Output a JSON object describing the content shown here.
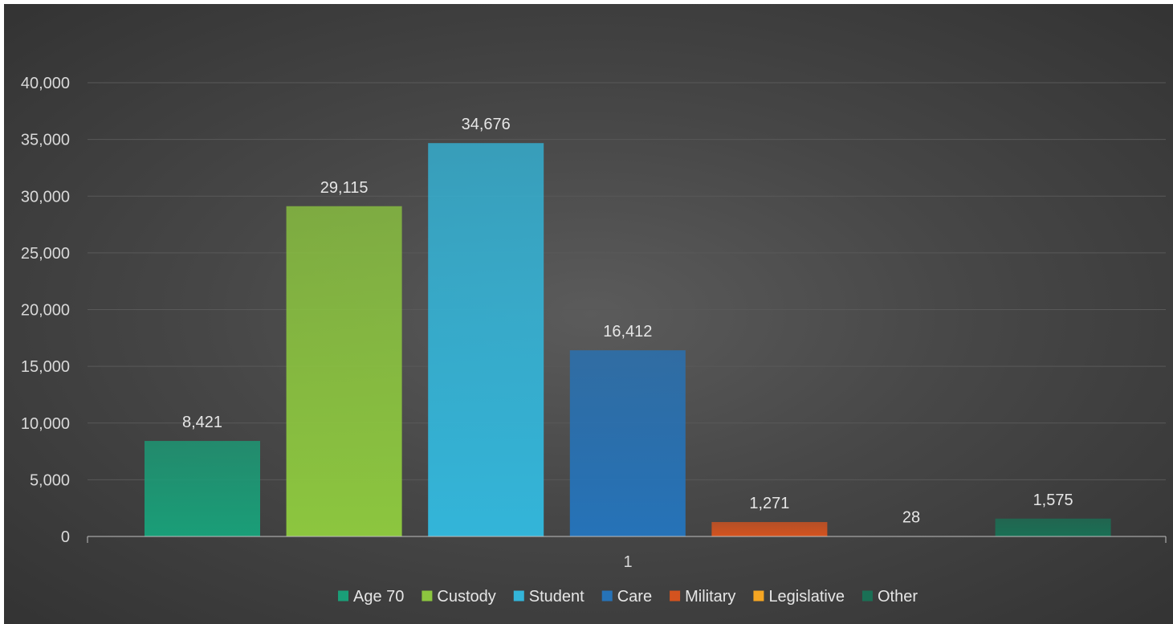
{
  "chart_data": {
    "type": "bar",
    "categories": [
      "1"
    ],
    "series": [
      {
        "name": "Age 70",
        "values": [
          8421
        ],
        "value_label": "8,421",
        "color": "#1a9e78"
      },
      {
        "name": "Custody",
        "values": [
          29115
        ],
        "value_label": "29,115",
        "color": "#8cc63f"
      },
      {
        "name": "Student",
        "values": [
          34676
        ],
        "value_label": "34,676",
        "color": "#33b5d9"
      },
      {
        "name": "Care",
        "values": [
          16412
        ],
        "value_label": "16,412",
        "color": "#2673b8"
      },
      {
        "name": "Military",
        "values": [
          1271
        ],
        "value_label": "1,271",
        "color": "#d4531f"
      },
      {
        "name": "Legislative",
        "values": [
          28
        ],
        "value_label": "28",
        "color": "#f5a623"
      },
      {
        "name": "Other",
        "values": [
          1575
        ],
        "value_label": "1,575",
        "color": "#1a7055"
      }
    ],
    "y_ticks": [
      "0",
      "5,000",
      "10,000",
      "15,000",
      "20,000",
      "25,000",
      "30,000",
      "35,000",
      "40,000"
    ],
    "ylim": [
      0,
      40000
    ],
    "grid": true,
    "legend_position": "bottom",
    "background": "#474747",
    "gridline_color": "#595959",
    "axis_color": "#bfbfbf"
  }
}
